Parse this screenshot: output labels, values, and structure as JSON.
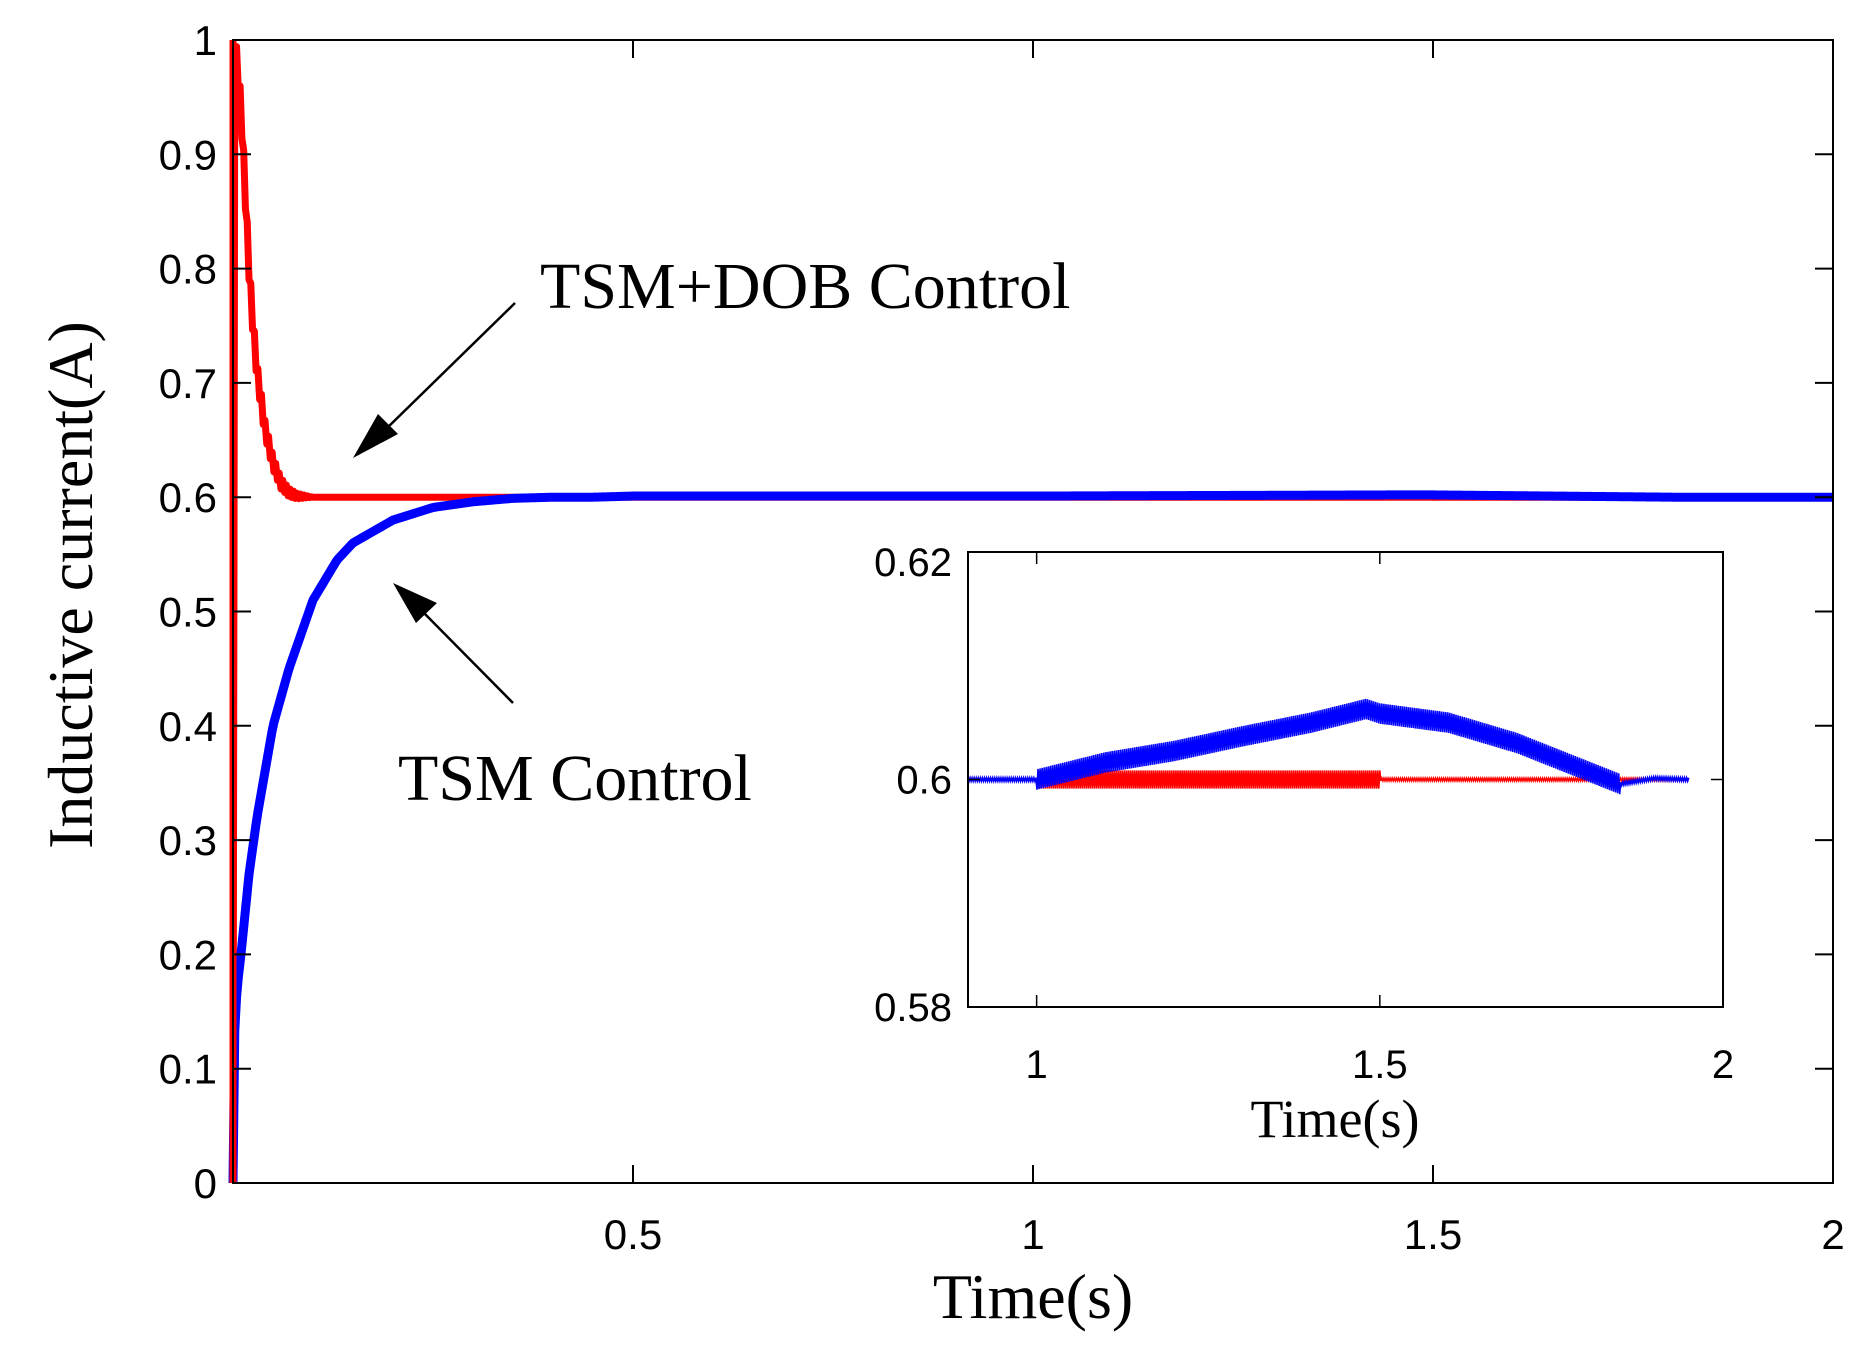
{
  "chart_data": [
    {
      "type": "line",
      "title": "",
      "xlabel": "Time(s)",
      "ylabel": "Inductive current(A)",
      "xlim": [
        0,
        2
      ],
      "ylim": [
        0,
        1
      ],
      "xticks": [
        0.5,
        1,
        1.5,
        2
      ],
      "xtick_labels": [
        "0.5",
        "1",
        "1.5",
        "2"
      ],
      "yticks": [
        0,
        0.1,
        0.2,
        0.3,
        0.4,
        0.5,
        0.6,
        0.7,
        0.8,
        0.9,
        1
      ],
      "ytick_labels": [
        "0",
        "0.1",
        "0.2",
        "0.3",
        "0.4",
        "0.5",
        "0.6",
        "0.7",
        "0.8",
        "0.9",
        "1"
      ],
      "grid": false,
      "series": [
        {
          "name": "TSM+DOB Control",
          "color": "#ff0000",
          "x": [
            0,
            0.001,
            0.005,
            0.01,
            0.015,
            0.02,
            0.025,
            0.03,
            0.04,
            0.05,
            0.06,
            0.07,
            0.08,
            0.1,
            0.2,
            0.5,
            1.0,
            1.5,
            2.0
          ],
          "y": [
            0,
            1.0,
            0.98,
            0.94,
            0.87,
            0.8,
            0.75,
            0.71,
            0.66,
            0.63,
            0.612,
            0.604,
            0.601,
            0.6,
            0.6,
            0.6,
            0.6,
            0.6,
            0.6
          ]
        },
        {
          "name": "TSM Control",
          "color": "#0000ff",
          "x": [
            0,
            0.002,
            0.005,
            0.01,
            0.02,
            0.03,
            0.05,
            0.07,
            0.1,
            0.13,
            0.15,
            0.2,
            0.25,
            0.3,
            0.35,
            0.4,
            0.45,
            0.5,
            1.0,
            1.45,
            1.5,
            1.8,
            2.0
          ],
          "y": [
            0,
            0.13,
            0.17,
            0.2,
            0.27,
            0.32,
            0.4,
            0.45,
            0.51,
            0.545,
            0.56,
            0.58,
            0.591,
            0.596,
            0.599,
            0.6,
            0.6,
            0.601,
            0.601,
            0.602,
            0.602,
            0.6,
            0.6
          ]
        }
      ],
      "annotations": [
        {
          "text": "TSM+DOB Control",
          "target_x": 0.16,
          "target_y": 0.615
        },
        {
          "text": "TSM Control",
          "target_x": 0.2,
          "target_y": 0.53
        }
      ]
    },
    {
      "type": "line",
      "title": "",
      "xlabel": "Time(s)",
      "ylabel": "",
      "xlim": [
        0.9,
        2
      ],
      "ylim": [
        0.58,
        0.62
      ],
      "xticks": [
        1,
        1.5,
        2
      ],
      "xtick_labels": [
        "1",
        "1.5",
        "2"
      ],
      "yticks": [
        0.58,
        0.6,
        0.62
      ],
      "ytick_labels": [
        "0.58",
        "0.6",
        "0.62"
      ],
      "series": [
        {
          "name": "TSM+DOB Control",
          "color": "#ff0000",
          "x": [
            0.9,
            1.0,
            1.5,
            1.95
          ],
          "y": [
            0.6,
            0.6,
            0.6,
            0.6
          ],
          "ripple_x": [
            1.0,
            1.5
          ],
          "ripple_amplitude": 0.0008
        },
        {
          "name": "TSM Control",
          "color": "#0000ff",
          "x": [
            0.9,
            1.0,
            1.1,
            1.2,
            1.3,
            1.4,
            1.48,
            1.5,
            1.6,
            1.7,
            1.8,
            1.85,
            1.9,
            1.95
          ],
          "y": [
            0.6,
            0.6,
            0.6015,
            0.6025,
            0.6038,
            0.605,
            0.6062,
            0.6058,
            0.605,
            0.6032,
            0.6008,
            0.5996,
            0.6001,
            0.6
          ],
          "ripple_amplitude": 0.0009
        }
      ]
    }
  ]
}
